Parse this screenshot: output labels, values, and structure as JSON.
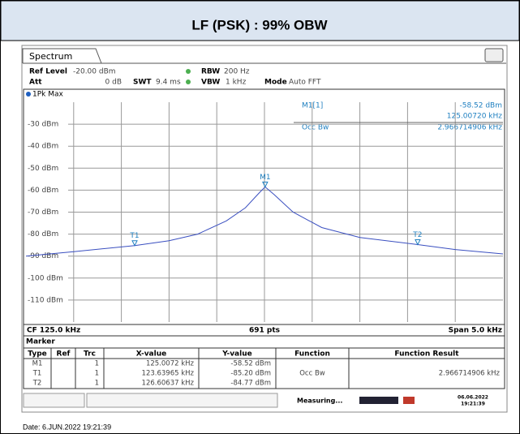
{
  "header": {
    "title": "LF (PSK) : 99% OBW"
  },
  "tab": "Spectrum",
  "settings": {
    "ref_level_label": "Ref Level",
    "ref_level": "-20.00 dBm",
    "att_label": "Att",
    "att": "0 dB",
    "swt_label": "SWT",
    "swt": "9.4 ms",
    "rbw_label": "RBW",
    "rbw": "200 Hz",
    "vbw_label": "VBW",
    "vbw": "1 kHz",
    "mode_label": "Mode",
    "mode": "Auto FFT"
  },
  "trace_label": "1Pk Max",
  "marker_info": {
    "name": "M1[1]",
    "level": "-58.52 dBm",
    "freq": "125.00720 kHz",
    "function": "Occ Bw",
    "result": "2.966714906 kHz"
  },
  "plot": {
    "xlim": [
      122.5,
      127.5
    ],
    "ylim": [
      -120,
      -20
    ],
    "yticks": [
      {
        "value": -30,
        "label": "-30 dBm"
      },
      {
        "value": -40,
        "label": "-40 dBm"
      },
      {
        "value": -50,
        "label": "-50 dBm"
      },
      {
        "value": -60,
        "label": "-60 dBm"
      },
      {
        "value": -70,
        "label": "-70 dBm"
      },
      {
        "value": -80,
        "label": "-80 dBm"
      },
      {
        "value": -90,
        "label": "-90 dBm"
      },
      {
        "value": -100,
        "label": "-100 dBm"
      },
      {
        "value": -110,
        "label": "-110 dBm"
      }
    ],
    "color": "#3a4fc0",
    "trace": {
      "x": [
        122.5,
        123.0,
        123.64,
        124.0,
        124.3,
        124.6,
        124.8,
        124.95,
        125.0072,
        125.1,
        125.3,
        125.6,
        126.0,
        126.606,
        127.0,
        127.5
      ],
      "y": [
        -90,
        -88,
        -85.2,
        -83,
        -80,
        -74,
        -68,
        -61,
        -58.52,
        -62,
        -70,
        -77,
        -81.5,
        -84.77,
        -87,
        -89
      ]
    },
    "markers": [
      {
        "name": "M1",
        "x": 125.0072,
        "y": -58.52
      },
      {
        "name": "T1",
        "x": 123.63965,
        "y": -85.2
      },
      {
        "name": "T2",
        "x": 126.60637,
        "y": -84.77
      }
    ]
  },
  "footer": {
    "cf": "CF 125.0 kHz",
    "points": "691 pts",
    "span": "Span 5.0 kHz"
  },
  "marker_table": {
    "title": "Marker",
    "columns": [
      "Type",
      "Ref",
      "Trc",
      "X-value",
      "Y-value",
      "Function",
      "Function Result"
    ],
    "rows": [
      {
        "type": "M1",
        "trc": "1",
        "x": "125.0072 kHz",
        "y": "-58.52 dBm"
      },
      {
        "type": "T1",
        "trc": "1",
        "x": "123.63965 kHz",
        "y": "-85.20 dBm",
        "function": "Occ Bw",
        "result": "2.966714906 kHz"
      },
      {
        "type": "T2",
        "trc": "1",
        "x": "126.60637 kHz",
        "y": "-84.77 dBm"
      }
    ]
  },
  "status": {
    "text": "Measuring...",
    "date": "06.06.2022",
    "time": "19:21:39"
  },
  "date_line": "Date: 6.JUN.2022 19:21:39"
}
